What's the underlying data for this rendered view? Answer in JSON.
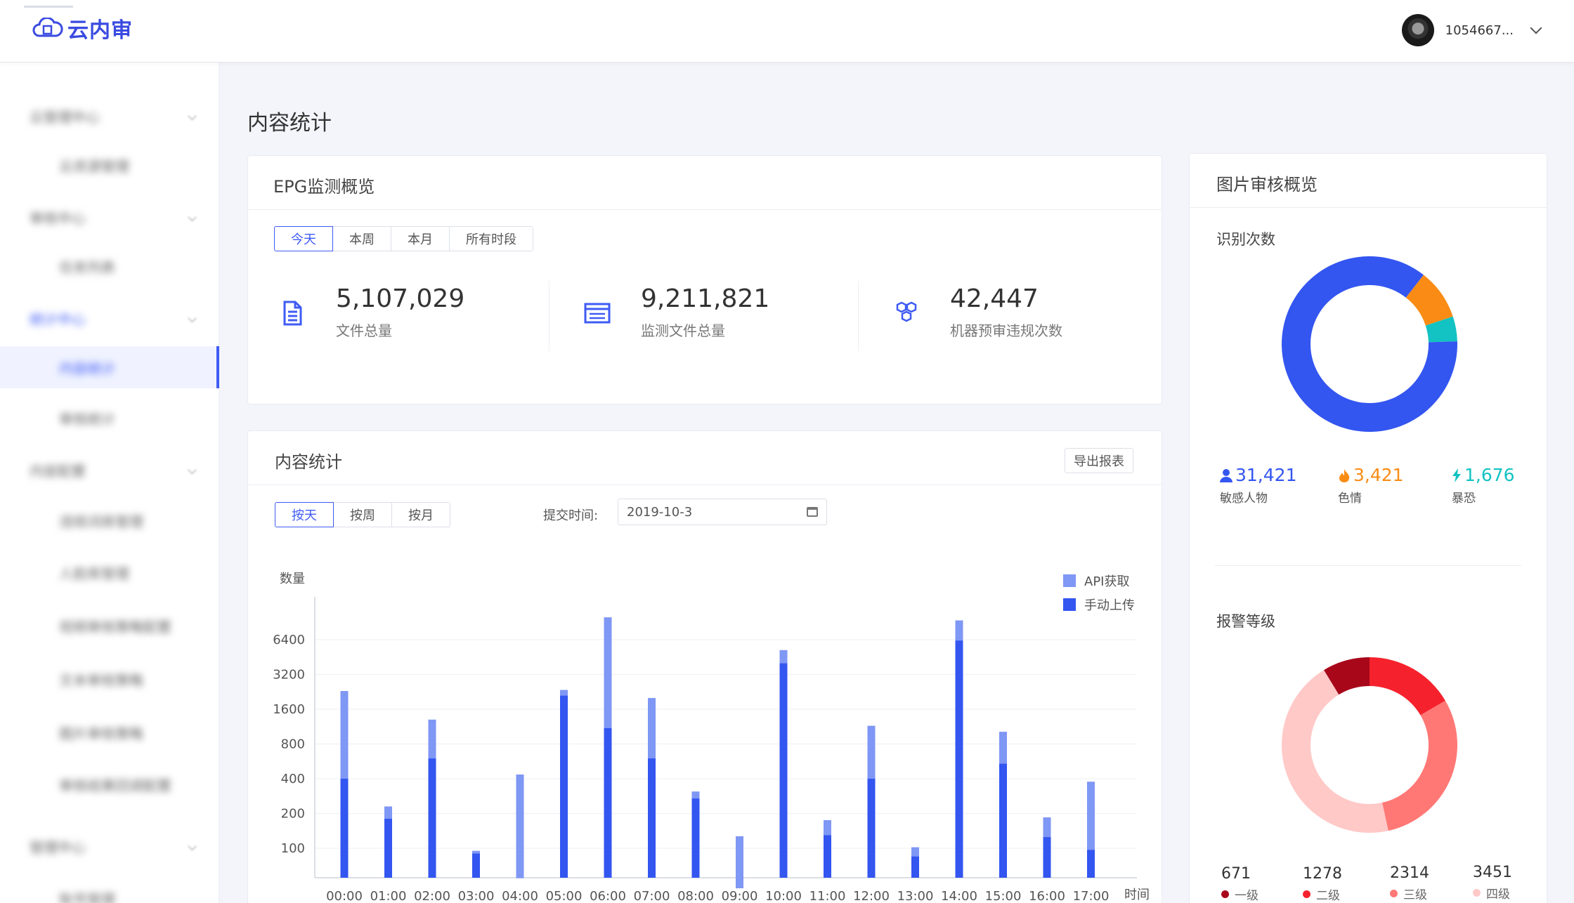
{
  "header": {
    "logo_text": "云内审",
    "user_name": "1054667..."
  },
  "sidebar": {
    "items": [
      {
        "label": "云管理中心",
        "level": "group"
      },
      {
        "label": "云资源管理",
        "level": "sub"
      },
      {
        "label": "审核中心",
        "level": "group"
      },
      {
        "label": "任务列表",
        "level": "sub"
      },
      {
        "label": "统计中心",
        "level": "group"
      },
      {
        "label": "内容统计",
        "level": "sub",
        "active": true
      },
      {
        "label": "审核统计",
        "level": "sub"
      },
      {
        "label": "内容配置",
        "level": "group"
      },
      {
        "label": "违规词库管理",
        "level": "sub"
      },
      {
        "label": "人脸库管理",
        "level": "sub"
      },
      {
        "label": "视频审核策略配置",
        "level": "sub"
      },
      {
        "label": "文本审核策略",
        "level": "sub"
      },
      {
        "label": "图片审核策略",
        "level": "sub"
      },
      {
        "label": "审核结果回调配置",
        "level": "sub"
      },
      {
        "label": "管理中心",
        "level": "group"
      },
      {
        "label": "账号管理",
        "level": "sub"
      }
    ]
  },
  "page": {
    "title": "内容统计"
  },
  "epg": {
    "title": "EPG监测概览",
    "tabs": [
      "今天",
      "本周",
      "本月",
      "所有时段"
    ],
    "active_tab": 0,
    "stats": [
      {
        "value": "5,107,029",
        "label": "文件总量",
        "icon": "document-icon"
      },
      {
        "value": "9,211,821",
        "label": "监测文件总量",
        "icon": "browser-window-icon"
      },
      {
        "value": "42,447",
        "label": "机器预审违规次数",
        "icon": "cubes-icon"
      }
    ]
  },
  "content_stats": {
    "title": "内容统计",
    "export_label": "导出报表",
    "tabs": [
      "按天",
      "按周",
      "按月"
    ],
    "active_tab": 0,
    "date_label": "提交时间:",
    "date_value": "2019-10-3"
  },
  "chart_data": {
    "type": "bar",
    "stacked": true,
    "ylabel": "数量",
    "xlabel": "时间",
    "y_scale": "log2",
    "y_ticks": [
      100,
      200,
      400,
      800,
      1600,
      3200,
      6400
    ],
    "categories": [
      "00:00",
      "01:00",
      "02:00",
      "03:00",
      "04:00",
      "05:00",
      "06:00",
      "07:00",
      "08:00",
      "09:00",
      "10:00",
      "11:00",
      "12:00",
      "13:00",
      "14:00",
      "15:00",
      "16:00",
      "17:00"
    ],
    "series": [
      {
        "name": "手动上传",
        "color": "#3355f0",
        "values": [
          400,
          180,
          600,
          90,
          55,
          2100,
          1100,
          600,
          270,
          45,
          4000,
          130,
          400,
          85,
          6300,
          540,
          125,
          97
        ]
      },
      {
        "name": "API获取",
        "color": "#7f97f5",
        "values": [
          1900,
          50,
          700,
          5,
          380,
          250,
          8900,
          1400,
          40,
          82,
          1200,
          45,
          750,
          17,
          3100,
          480,
          60,
          280
        ]
      }
    ],
    "legend_position": "top-right",
    "grid": true
  },
  "image_review": {
    "title": "图片审核概览",
    "recognition": {
      "subtitle": "识别次数",
      "segments": [
        {
          "label": "敏感人物",
          "value": "31,421",
          "color": "#3355f0",
          "icon": "person-icon"
        },
        {
          "label": "色情",
          "value": "3,421",
          "color": "#fa8c16",
          "icon": "fire-icon"
        },
        {
          "label": "暴恐",
          "value": "1,676",
          "color": "#13c2c2",
          "icon": "lightning-icon"
        }
      ]
    },
    "alert_level": {
      "subtitle": "报警等级",
      "segments": [
        {
          "label": "一级",
          "value": "671",
          "color": "#a8071a"
        },
        {
          "label": "二级",
          "value": "1278",
          "color": "#f5222d"
        },
        {
          "label": "三级",
          "value": "2314",
          "color": "#ff7875"
        },
        {
          "label": "四级",
          "value": "3451",
          "color": "#ffc9c7"
        }
      ]
    }
  }
}
